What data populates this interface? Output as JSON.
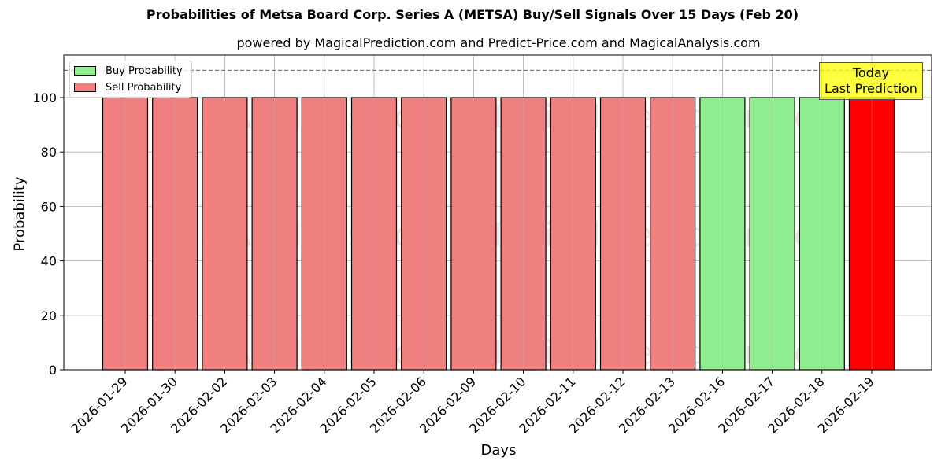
{
  "header": {
    "title": "Probabilities of Metsa Board Corp. Series A (METSA) Buy/Sell Signals Over 15 Days (Feb 20)",
    "subtitle": "powered by MagicalPrediction.com and Predict-Price.com and MagicalAnalysis.com"
  },
  "axes": {
    "xlabel": "Days",
    "ylabel": "Probability",
    "yticks": [
      "0",
      "20",
      "40",
      "60",
      "80",
      "100"
    ]
  },
  "legend": {
    "buy_label": "Buy Probability",
    "sell_label": "Sell Probability"
  },
  "annotation": {
    "line1": "Today",
    "line2": "Last Prediction"
  },
  "watermark": {
    "left": "MagicalAnalysis.com",
    "right": "MagicalPrediction.com"
  },
  "colors": {
    "buy": "#90ee90",
    "sell": "#f08080",
    "today": "#ff0000",
    "annotation_bg": "#ffff00",
    "grid": "#b0b0b0",
    "threshold_line": "#808080"
  },
  "chart_data": {
    "type": "bar",
    "title": "Probabilities of Metsa Board Corp. Series A (METSA) Buy/Sell Signals Over 15 Days (Feb 20)",
    "subtitle": "powered by MagicalPrediction.com and Predict-Price.com and MagicalAnalysis.com",
    "xlabel": "Days",
    "ylabel": "Probability",
    "ylim": [
      0,
      115.6
    ],
    "grid": true,
    "legend_position": "upper left",
    "threshold_line": 110,
    "categories": [
      "2026-01-29",
      "2026-01-30",
      "2026-02-02",
      "2026-02-03",
      "2026-02-04",
      "2026-02-05",
      "2026-02-06",
      "2026-02-09",
      "2026-02-10",
      "2026-02-11",
      "2026-02-12",
      "2026-02-13",
      "2026-02-16",
      "2026-02-17",
      "2026-02-18",
      "2026-02-19"
    ],
    "signals": [
      "sell",
      "sell",
      "sell",
      "sell",
      "sell",
      "sell",
      "sell",
      "sell",
      "sell",
      "sell",
      "sell",
      "sell",
      "buy",
      "buy",
      "buy",
      "sell-today"
    ],
    "series": [
      {
        "name": "Buy Probability",
        "values": [
          0,
          0,
          0,
          0,
          0,
          0,
          0,
          0,
          0,
          0,
          0,
          0,
          100,
          100,
          100,
          0
        ]
      },
      {
        "name": "Sell Probability",
        "values": [
          100,
          100,
          100,
          100,
          100,
          100,
          100,
          100,
          100,
          100,
          100,
          100,
          0,
          0,
          0,
          100
        ]
      }
    ],
    "annotations": [
      "Today",
      "Last Prediction"
    ]
  }
}
